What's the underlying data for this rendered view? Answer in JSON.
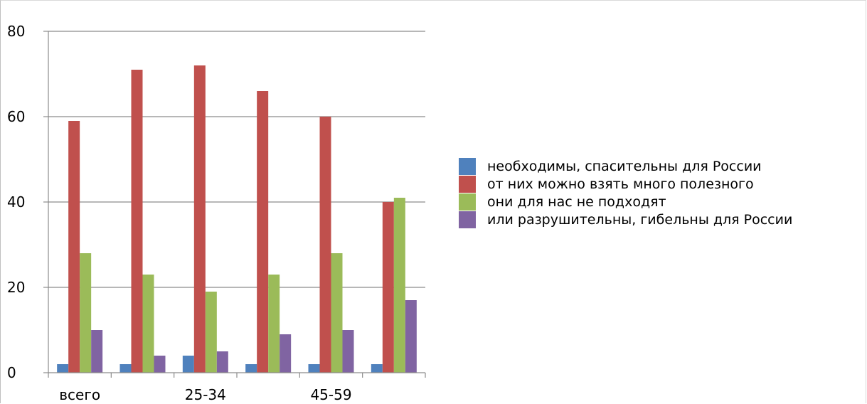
{
  "chart_data": {
    "type": "bar",
    "categories": [
      "всего",
      "",
      "25-34",
      "",
      "45-59",
      ""
    ],
    "x_tick_labels_shown": [
      "всего",
      "25-34",
      "45-59"
    ],
    "series": [
      {
        "name": "необходимы, спасительны для России",
        "color": "#4f81bd",
        "values": [
          2,
          2,
          4,
          2,
          2,
          2
        ]
      },
      {
        "name": "от них можно взять много полезного",
        "color": "#c0504d",
        "values": [
          59,
          71,
          72,
          66,
          60,
          40
        ]
      },
      {
        "name": "они для нас не подходят",
        "color": "#9bbb59",
        "values": [
          28,
          23,
          19,
          23,
          28,
          41
        ]
      },
      {
        "name": "или разрушительны, гибельны для России",
        "color": "#8064a2",
        "values": [
          10,
          4,
          5,
          9,
          10,
          17
        ]
      }
    ],
    "ylim": [
      0,
      80
    ],
    "yticks": [
      0,
      20,
      40,
      60,
      80
    ],
    "grid": true,
    "legend_position": "right"
  }
}
